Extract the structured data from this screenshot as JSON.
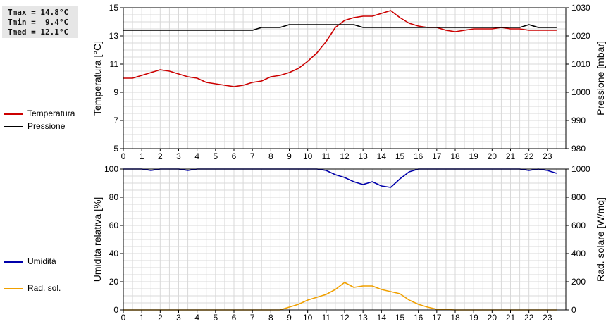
{
  "stats": {
    "tmax": "Tmax = 14.8°C",
    "tmin": "Tmin =  9.4°C",
    "tmed": "Tmed = 12.1°C"
  },
  "legend_top": [
    {
      "label": "Temperatura",
      "color": "#cc0000"
    },
    {
      "label": "Pressione",
      "color": "#000000"
    }
  ],
  "legend_bottom": [
    {
      "label": "Umidità",
      "color": "#0000aa"
    },
    {
      "label": "Rad. sol.",
      "color": "#f0a000"
    }
  ],
  "chart_data": [
    {
      "type": "line",
      "xlabel": "",
      "xlim": [
        0,
        24
      ],
      "xticks": [
        "0",
        "1",
        "2",
        "3",
        "4",
        "5",
        "6",
        "7",
        "8",
        "9",
        "10",
        "11",
        "12",
        "13",
        "14",
        "15",
        "16",
        "17",
        "18",
        "19",
        "20",
        "21",
        "22",
        "23"
      ],
      "ylabel": "Temperatura [°C]",
      "ylim": [
        5,
        15
      ],
      "yticks": [
        "5",
        "7",
        "9",
        "11",
        "13",
        "15"
      ],
      "y2label": "Pressione [mbar]",
      "y2lim": [
        980,
        1030
      ],
      "y2ticks": [
        "980",
        "990",
        "1000",
        "1010",
        "1020",
        "1030"
      ],
      "grid": true,
      "series": [
        {
          "name": "Temperatura",
          "axis": "left",
          "color": "#cc0000",
          "x": [
            0,
            0.5,
            1,
            1.5,
            2,
            2.5,
            3,
            3.5,
            4,
            4.5,
            5,
            5.5,
            6,
            6.5,
            7,
            7.5,
            8,
            8.5,
            9,
            9.5,
            10,
            10.5,
            11,
            11.5,
            12,
            12.5,
            13,
            13.5,
            14,
            14.5,
            15,
            15.5,
            16,
            16.5,
            17,
            17.5,
            18,
            18.5,
            19,
            19.5,
            20,
            20.5,
            21,
            21.5,
            22,
            22.5,
            23,
            23.5
          ],
          "y": [
            10.0,
            10.0,
            10.2,
            10.4,
            10.6,
            10.5,
            10.3,
            10.1,
            10.0,
            9.7,
            9.6,
            9.5,
            9.4,
            9.5,
            9.7,
            9.8,
            10.1,
            10.2,
            10.4,
            10.7,
            11.2,
            11.8,
            12.6,
            13.6,
            14.1,
            14.3,
            14.4,
            14.4,
            14.6,
            14.8,
            14.3,
            13.9,
            13.7,
            13.6,
            13.6,
            13.4,
            13.3,
            13.4,
            13.5,
            13.5,
            13.5,
            13.6,
            13.5,
            13.5,
            13.4,
            13.4,
            13.4,
            13.4
          ]
        },
        {
          "name": "Pressione",
          "axis": "right",
          "color": "#000000",
          "x": [
            0,
            1,
            2,
            3,
            4,
            5,
            6,
            7,
            7.5,
            8,
            8.5,
            9,
            10,
            11,
            12,
            12.5,
            13,
            13.5,
            14,
            14.5,
            15,
            16,
            17,
            18,
            19,
            20,
            21,
            21.5,
            22,
            22.5,
            23,
            23.5
          ],
          "y": [
            1022,
            1022,
            1022,
            1022,
            1022,
            1022,
            1022,
            1022,
            1023,
            1023,
            1023,
            1024,
            1024,
            1024,
            1024,
            1024,
            1023,
            1023,
            1023,
            1023,
            1023,
            1023,
            1023,
            1023,
            1023,
            1023,
            1023,
            1023,
            1024,
            1023,
            1023,
            1023
          ]
        }
      ]
    },
    {
      "type": "line",
      "xlabel": "",
      "xlim": [
        0,
        24
      ],
      "xticks": [
        "0",
        "1",
        "2",
        "3",
        "4",
        "5",
        "6",
        "7",
        "8",
        "9",
        "10",
        "11",
        "12",
        "13",
        "14",
        "15",
        "16",
        "17",
        "18",
        "19",
        "20",
        "21",
        "22",
        "23"
      ],
      "ylabel": "Umidità relativa [%]",
      "ylim": [
        0,
        100
      ],
      "yticks": [
        "0",
        "20",
        "40",
        "60",
        "80",
        "100"
      ],
      "y2label": "Rad. solare [W/mq]",
      "y2lim": [
        0,
        1000
      ],
      "y2ticks": [
        "0",
        "200",
        "400",
        "600",
        "800",
        "1000"
      ],
      "grid": true,
      "series": [
        {
          "name": "Umidità",
          "axis": "left",
          "color": "#0000aa",
          "x": [
            0,
            0.5,
            1,
            1.5,
            2,
            2.5,
            3,
            3.5,
            4,
            4.5,
            5,
            6,
            7,
            8,
            9,
            10,
            10.5,
            11,
            11.5,
            12,
            12.5,
            13,
            13.5,
            14,
            14.5,
            15,
            15.5,
            16,
            16.5,
            17,
            18,
            19,
            20,
            21,
            21.5,
            22,
            22.5,
            23,
            23.5
          ],
          "y": [
            100,
            100,
            100,
            99,
            100,
            100,
            100,
            99,
            100,
            100,
            100,
            100,
            100,
            100,
            100,
            100,
            100,
            99,
            96,
            94,
            91,
            89,
            91,
            88,
            87,
            93,
            98,
            100,
            100,
            100,
            100,
            100,
            100,
            100,
            100,
            99,
            100,
            99,
            97
          ]
        },
        {
          "name": "Rad. sol.",
          "axis": "right",
          "color": "#f0a000",
          "x": [
            0,
            1,
            2,
            3,
            4,
            5,
            6,
            7,
            8,
            8.5,
            9,
            9.5,
            10,
            10.5,
            11,
            11.5,
            12,
            12.5,
            13,
            13.5,
            14,
            14.5,
            15,
            15.5,
            16,
            16.5,
            17,
            18,
            19,
            20,
            21,
            22,
            23,
            23.5
          ],
          "y": [
            0,
            0,
            0,
            0,
            0,
            0,
            0,
            0,
            0,
            0,
            20,
            40,
            70,
            90,
            110,
            145,
            195,
            160,
            170,
            170,
            145,
            130,
            115,
            70,
            40,
            20,
            5,
            0,
            0,
            0,
            0,
            0,
            0,
            0
          ]
        }
      ]
    }
  ]
}
